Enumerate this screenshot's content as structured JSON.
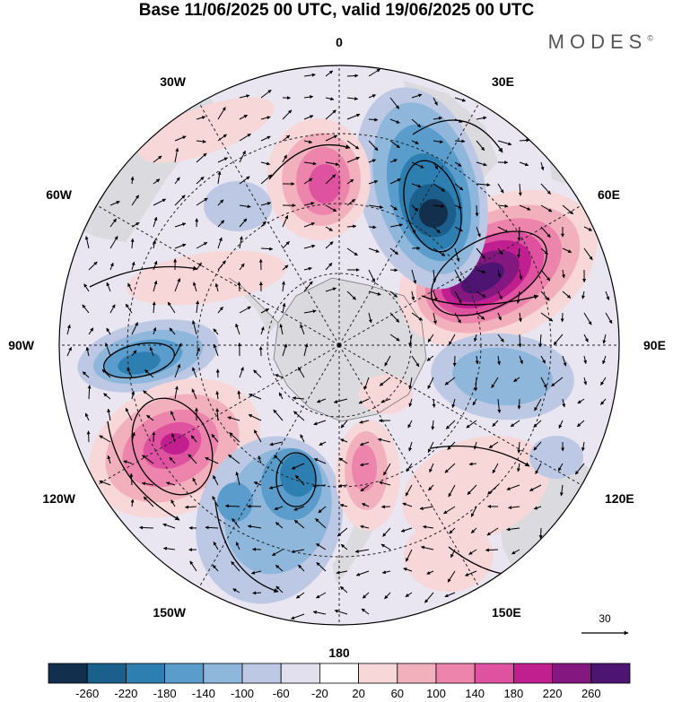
{
  "header": {
    "title": "Base 11/06/2025 00 UTC, valid 19/06/2025 00 UTC",
    "brand": "MODES",
    "brand_mark": "©"
  },
  "map": {
    "projection": "south-polar-stereographic",
    "longitude_labels": [
      "0",
      "30E",
      "60E",
      "90E",
      "120E",
      "150E",
      "180",
      "150W",
      "120W",
      "90W",
      "60W",
      "30W"
    ],
    "anomalies": [
      {
        "name": "positive-anomaly-indian-ocean",
        "sign": "positive",
        "peak": 260
      },
      {
        "name": "negative-anomaly-south-africa",
        "sign": "negative",
        "peak": -240
      },
      {
        "name": "positive-anomaly-south-atlantic",
        "sign": "positive",
        "peak": 200
      },
      {
        "name": "negative-anomaly-south-pacific-east",
        "sign": "negative",
        "peak": -160
      },
      {
        "name": "positive-anomaly-south-pacific",
        "sign": "positive",
        "peak": 200
      },
      {
        "name": "negative-anomaly-south-pacific-west",
        "sign": "negative",
        "peak": -180
      },
      {
        "name": "positive-anomaly-ross-sea",
        "sign": "positive",
        "peak": 140
      },
      {
        "name": "negative-anomaly-south-indian-east",
        "sign": "negative",
        "peak": -100
      }
    ],
    "reference_vector": {
      "value": "30"
    }
  },
  "colorbar": {
    "colors": [
      "#12304d",
      "#1b5f8c",
      "#2e7fb1",
      "#5a9ccb",
      "#8fb7dc",
      "#bcc8e4",
      "#e2e0ef",
      "#ffffff",
      "#f8d7d9",
      "#f2b0bd",
      "#ec84ac",
      "#df529f",
      "#c11f8f",
      "#851880",
      "#4e1472"
    ],
    "ticks": [
      "-260",
      "-220",
      "-180",
      "-140",
      "-100",
      "-60",
      "-20",
      "20",
      "60",
      "100",
      "140",
      "180",
      "220",
      "260"
    ]
  }
}
